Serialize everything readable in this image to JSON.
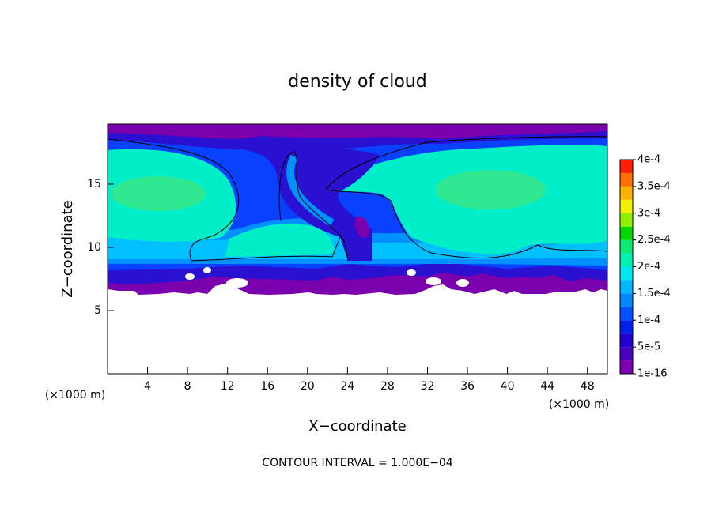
{
  "chart_data": {
    "type": "contour",
    "title": "density of cloud",
    "x_label": "X−coordinate",
    "y_label": "Z−coordinate",
    "x_unit_left": "(×1000 m)",
    "x_unit_right": "(×1000 m)",
    "footer": "CONTOUR INTERVAL = 1.000E−04",
    "xlim": [
      0,
      50
    ],
    "xticks": [
      4,
      8,
      12,
      16,
      20,
      24,
      28,
      32,
      36,
      40,
      44,
      48
    ],
    "ylim": [
      0,
      20
    ],
    "yticks": [
      5,
      10,
      15
    ],
    "colorbar": {
      "ticks": [
        1e-16,
        {
          "value": 5e-05,
          "label": "5e-5"
        },
        {
          "value": 0.0001,
          "label": "1e-4"
        },
        {
          "value": 0.00015,
          "label": "1.5e-4"
        },
        {
          "value": 0.0002,
          "label": "2e-4"
        },
        {
          "value": 0.00025,
          "label": "2.5e-4"
        },
        {
          "value": 0.0003,
          "label": "3e-4"
        },
        {
          "value": 0.00035,
          "label": "3.5e-4"
        },
        {
          "value": 0.0004,
          "label": "4e-4"
        }
      ],
      "colors": [
        "#7a00b0",
        "#4a00c0",
        "#1e00d0",
        "#0020f0",
        "#0050ff",
        "#0088ff",
        "#00b8ff",
        "#00e8f0",
        "#00f0b0",
        "#10e870",
        "#00d800",
        "#90f000",
        "#f0f000",
        "#ffb000",
        "#ff7000",
        "#ff2000"
      ]
    }
  }
}
